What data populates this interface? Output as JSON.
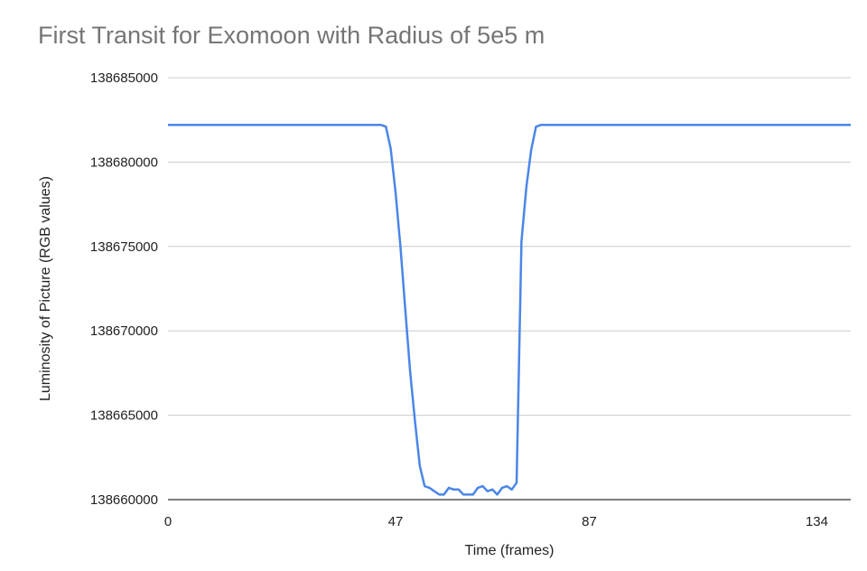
{
  "chart_data": {
    "type": "line",
    "title": "First Transit for Exomoon with Radius of 5e5 m",
    "xlabel": "Time (frames)",
    "ylabel": "Luminosity of Picture (RGB values)",
    "xlim": [
      0,
      141
    ],
    "ylim": [
      138660000,
      138685000
    ],
    "x_tick_labels": [
      "0",
      "47",
      "87",
      "134"
    ],
    "x_tick_values": [
      0,
      47,
      87,
      134
    ],
    "y_tick_labels": [
      "138660000",
      "138665000",
      "138670000",
      "138675000",
      "138680000",
      "138685000"
    ],
    "y_tick_values": [
      138660000,
      138665000,
      138670000,
      138675000,
      138680000,
      138685000
    ],
    "grid": true,
    "legend": "none",
    "series_color": "#4a86e8",
    "series": [
      {
        "x": [
          0,
          44,
          45,
          46,
          47,
          48,
          49,
          50,
          51,
          52,
          53,
          54,
          55,
          56,
          57,
          58,
          59,
          60,
          61,
          62,
          63,
          64,
          65,
          66,
          67,
          68,
          69,
          70,
          71,
          72,
          73,
          74,
          75,
          76,
          77,
          78,
          79,
          80,
          81,
          82,
          83,
          84,
          85,
          86,
          87,
          88,
          141
        ],
        "y": [
          138682200,
          138682200,
          138682100,
          138680800,
          138678200,
          138675000,
          138671300,
          138667600,
          138664700,
          138662000,
          138660800,
          138660700,
          138660500,
          138660300,
          138660300,
          138660700,
          138660600,
          138660600,
          138660300,
          138660300,
          138660300,
          138660700,
          138660800,
          138660500,
          138660600,
          138660300,
          138660700,
          138660800,
          138660600,
          138661000,
          138675300,
          138678500,
          138680700,
          138682100,
          138682200,
          138682200,
          138682200,
          138682200,
          138682200,
          138682200,
          138682200,
          138682200,
          138682200,
          138682200,
          138682200,
          138682200,
          138682200
        ]
      }
    ]
  }
}
